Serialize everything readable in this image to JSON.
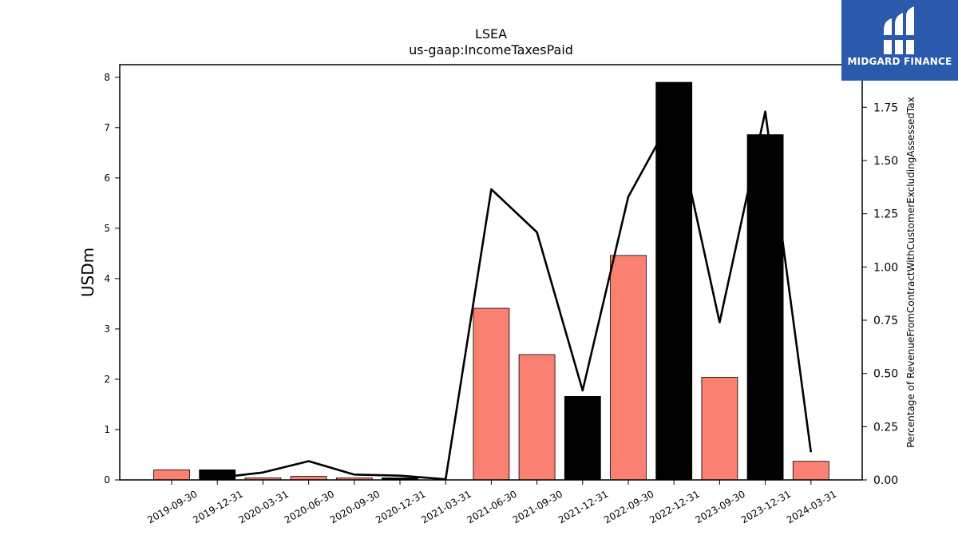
{
  "logo": {
    "text": "MIDGARD FINANCE",
    "icon": "midgard-logo-icon",
    "background": "#2b5aad"
  },
  "chart_data": {
    "type": "bar",
    "title": "LSEA",
    "subtitle": "us-gaap:IncomeTaxesPaid",
    "ylabel": "USDm",
    "y2label": "Percentage of RevenueFromContractWithCustomerExcludingAssessedTax",
    "categories": [
      "2019-09-30",
      "2019-12-31",
      "2020-03-31",
      "2020-06-30",
      "2020-09-30",
      "2020-12-31",
      "2021-03-31",
      "2021-06-30",
      "2021-09-30",
      "2021-12-31",
      "2022-09-30",
      "2022-12-31",
      "2023-09-30",
      "2023-12-31",
      "2024-03-31"
    ],
    "series": [
      {
        "type": "bar",
        "values": [
          0.2,
          0.2,
          0.04,
          0.07,
          0.04,
          0.04,
          0.0,
          3.41,
          2.49,
          1.66,
          4.46,
          7.9,
          2.04,
          6.86,
          0.37
        ],
        "bar_colors": [
          "#fa8072",
          "#000000",
          "#fa8072",
          "#fa8072",
          "#fa8072",
          "#000000",
          "#fa8072",
          "#fa8072",
          "#fa8072",
          "#000000",
          "#fa8072",
          "#000000",
          "#fa8072",
          "#000000",
          "#fa8072"
        ]
      },
      {
        "type": "line",
        "axis": "right",
        "color": "#000000",
        "values": [
          null,
          0.01,
          0.035,
          0.088,
          0.025,
          0.02,
          0.003,
          1.365,
          1.163,
          0.42,
          1.33,
          1.72,
          0.74,
          1.73,
          0.13
        ]
      }
    ],
    "ylim": [
      0,
      8.25
    ],
    "y2lim": [
      0,
      1.95
    ],
    "yticks": [
      0,
      1,
      2,
      3,
      4,
      5,
      6,
      7,
      8
    ],
    "y2ticks": [
      "0.00",
      "0.25",
      "0.50",
      "0.75",
      "1.00",
      "1.25",
      "1.50",
      "1.75"
    ],
    "grid": false,
    "legend": "none"
  }
}
